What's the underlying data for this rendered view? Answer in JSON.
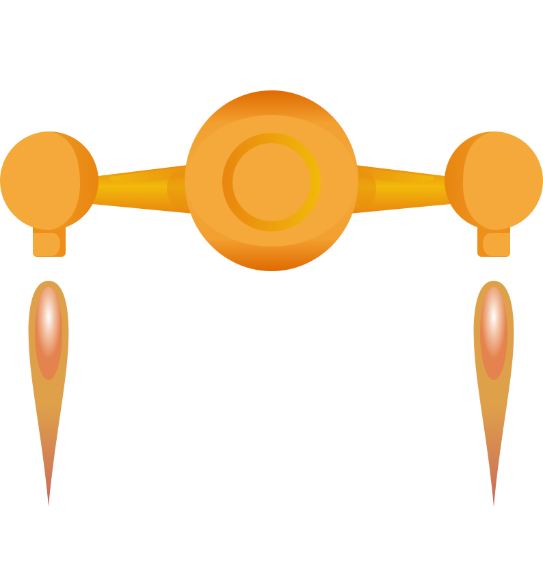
{
  "scene": {
    "subject": "orange-spaceship-icon",
    "background_color": "#ffffff",
    "colors": {
      "body_orange": "#f4a93a",
      "deep_orange": "#e8860f",
      "burnt_orange": "#e06a00",
      "golden_yellow": "#f2b90a",
      "flame_outer": "#dfa04a",
      "flame_inner": "#e5834e",
      "flame_core": "#ffffff",
      "flame_tip": "#c86a5a"
    },
    "parts": [
      "central-cockpit",
      "left-wing-arm",
      "right-wing-arm",
      "left-engine-pod",
      "right-engine-pod",
      "left-thruster-flame",
      "right-thruster-flame"
    ]
  }
}
